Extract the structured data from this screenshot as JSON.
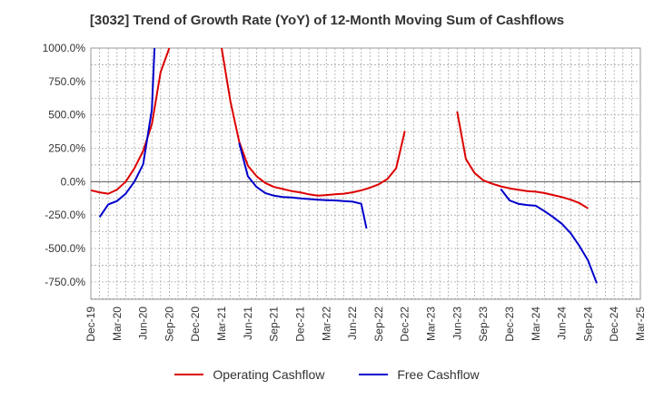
{
  "chart_data": {
    "type": "line",
    "title": "[3032]  Trend of Growth Rate (YoY) of 12-Month Moving Sum of Cashflows",
    "xlabel": "",
    "ylabel": "",
    "ylim": [
      -880,
      1000
    ],
    "y_ticks": [
      1000,
      750,
      500,
      250,
      0,
      -250,
      -500,
      -750
    ],
    "y_tick_labels": [
      "1000.0%",
      "750.0%",
      "500.0%",
      "250.0%",
      "0.0%",
      "-250.0%",
      "-500.0%",
      "-750.0%"
    ],
    "x_tick_labels": [
      "Dec-19",
      "Mar-20",
      "Jun-20",
      "Sep-20",
      "Dec-20",
      "Mar-21",
      "Jun-21",
      "Sep-21",
      "Dec-21",
      "Mar-22",
      "Jun-22",
      "Sep-22",
      "Dec-22",
      "Mar-23",
      "Jun-23",
      "Sep-23",
      "Dec-23",
      "Mar-24",
      "Jun-24",
      "Sep-24",
      "Dec-24",
      "Mar-25"
    ],
    "grid": true,
    "legend_position": "bottom",
    "series": [
      {
        "name": "Operating Cashflow",
        "color": "#dd0000",
        "points": [
          [
            0,
            -65
          ],
          [
            1,
            -80
          ],
          [
            2,
            -90
          ],
          [
            3,
            -60
          ],
          [
            4,
            0
          ],
          [
            5,
            100
          ],
          [
            6,
            230
          ],
          [
            7,
            430
          ],
          [
            8,
            820
          ],
          [
            9,
            1000
          ],
          [
            null,
            null
          ],
          [
            15,
            1000
          ],
          [
            16,
            600
          ],
          [
            17,
            300
          ],
          [
            18,
            120
          ],
          [
            19,
            40
          ],
          [
            20,
            -10
          ],
          [
            21,
            -40
          ],
          [
            22,
            -55
          ],
          [
            23,
            -70
          ],
          [
            24,
            -80
          ],
          [
            25,
            -95
          ],
          [
            26,
            -105
          ],
          [
            27,
            -100
          ],
          [
            28,
            -95
          ],
          [
            29,
            -90
          ],
          [
            30,
            -80
          ],
          [
            31,
            -65
          ],
          [
            32,
            -45
          ],
          [
            33,
            -20
          ],
          [
            34,
            20
          ],
          [
            35,
            100
          ],
          [
            36,
            380
          ],
          [
            null,
            null
          ],
          [
            42,
            525
          ],
          [
            43,
            170
          ],
          [
            44,
            65
          ],
          [
            45,
            10
          ],
          [
            46,
            -15
          ],
          [
            47,
            -35
          ],
          [
            48,
            -50
          ],
          [
            49,
            -60
          ],
          [
            50,
            -70
          ],
          [
            51,
            -75
          ],
          [
            52,
            -85
          ],
          [
            53,
            -100
          ],
          [
            54,
            -115
          ],
          [
            55,
            -135
          ],
          [
            56,
            -160
          ],
          [
            57,
            -200
          ]
        ]
      },
      {
        "name": "Free Cashflow",
        "color": "#0000cc",
        "points": [
          [
            1,
            -265
          ],
          [
            2,
            -170
          ],
          [
            3,
            -145
          ],
          [
            4,
            -90
          ],
          [
            5,
            0
          ],
          [
            6,
            130
          ],
          [
            7,
            540
          ],
          [
            7.3,
            1000
          ],
          [
            null,
            null
          ],
          [
            17,
            290
          ],
          [
            18,
            40
          ],
          [
            19,
            -40
          ],
          [
            20,
            -85
          ],
          [
            21,
            -105
          ],
          [
            22,
            -115
          ],
          [
            23,
            -118
          ],
          [
            24,
            -125
          ],
          [
            25,
            -130
          ],
          [
            26,
            -135
          ],
          [
            27,
            -138
          ],
          [
            28,
            -140
          ],
          [
            29,
            -145
          ],
          [
            30,
            -150
          ],
          [
            31,
            -165
          ],
          [
            31.6,
            -350
          ],
          [
            null,
            null
          ],
          [
            47,
            -55
          ],
          [
            48,
            -140
          ],
          [
            49,
            -165
          ],
          [
            50,
            -175
          ],
          [
            51,
            -180
          ],
          [
            52,
            -220
          ],
          [
            53,
            -265
          ],
          [
            54,
            -315
          ],
          [
            55,
            -385
          ],
          [
            56,
            -480
          ],
          [
            57,
            -590
          ],
          [
            58,
            -760
          ]
        ]
      }
    ]
  }
}
